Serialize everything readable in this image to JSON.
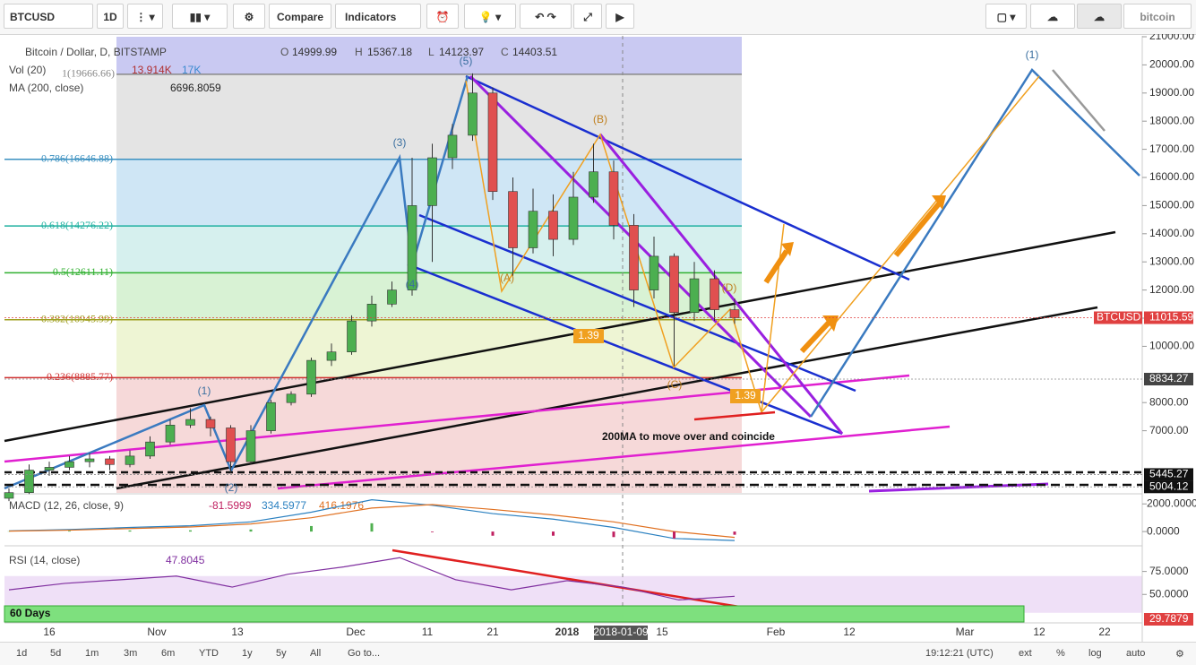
{
  "toolbar": {
    "symbol": "BTCUSD",
    "interval": "1D",
    "compare": "Compare",
    "indicators": "Indicators",
    "account": "bitcoin"
  },
  "legend": {
    "title": "Bitcoin / Dollar, D, BITSTAMP",
    "open_label": "O",
    "open": 14999.99,
    "high_label": "H",
    "high": 15367.18,
    "low_label": "L",
    "low": 14123.97,
    "close_label": "C",
    "close": 14403.51,
    "volume_label": "Vol (20)",
    "volume": "13.914K",
    "volume_ma": "17K",
    "ma_label": "MA (200, close)",
    "ma": 6696.8059
  },
  "chart": {
    "ylim": [
      4790,
      21000
    ],
    "yticks": [
      {
        "value": 21000,
        "label": "21000.00"
      },
      {
        "value": 20000,
        "label": "20000.00"
      },
      {
        "value": 19000,
        "label": "19000.00"
      },
      {
        "value": 18000,
        "label": "18000.00"
      },
      {
        "value": 17000,
        "label": "17000.00"
      },
      {
        "value": 16000,
        "label": "16000.00"
      },
      {
        "value": 15000,
        "label": "15000.00"
      },
      {
        "value": 14000,
        "label": "14000.00"
      },
      {
        "value": 13000,
        "label": "13000.00"
      },
      {
        "value": 12000,
        "label": "12000.00"
      },
      {
        "value": 11000,
        "label": "11000.00"
      },
      {
        "value": 10000,
        "label": "10000.00"
      },
      {
        "value": 8000,
        "label": "8000.00"
      },
      {
        "value": 7000,
        "label": "7000.00"
      }
    ],
    "fib_levels": [
      {
        "value": 19666.66,
        "label": "1(19666.66)"
      },
      {
        "value": 16646.88,
        "label": "0.786(16646.88)"
      },
      {
        "value": 14276.22,
        "label": "0.618(14276.22)"
      },
      {
        "value": 12611.11,
        "label": "0.5(12611.11)"
      },
      {
        "value": 10945.99,
        "label": "0.382(10945.99)"
      },
      {
        "value": 8885.77,
        "label": "0.236(8885.77)"
      }
    ],
    "price_tags": [
      {
        "symbol": "BTCUSD",
        "value": 11015.59
      },
      {
        "value": 8834.27
      },
      {
        "value": 5445.27
      },
      {
        "value": 5004.12
      }
    ],
    "candles": [
      {
        "open": 4600,
        "high": 4950,
        "low": 4500,
        "close": 4800
      },
      {
        "open": 4800,
        "high": 5800,
        "low": 4750,
        "close": 5600
      },
      {
        "open": 5600,
        "high": 5900,
        "low": 5400,
        "close": 5700
      },
      {
        "open": 5700,
        "high": 6100,
        "low": 5600,
        "close": 5900
      },
      {
        "open": 5900,
        "high": 6200,
        "low": 5700,
        "close": 6000
      },
      {
        "open": 6000,
        "high": 6100,
        "low": 5600,
        "close": 5800
      },
      {
        "open": 5800,
        "high": 6300,
        "low": 5700,
        "close": 6100
      },
      {
        "open": 6100,
        "high": 6800,
        "low": 6000,
        "close": 6600
      },
      {
        "open": 6600,
        "high": 7400,
        "low": 6500,
        "close": 7200
      },
      {
        "open": 7200,
        "high": 7800,
        "low": 7100,
        "close": 7400
      },
      {
        "open": 7400,
        "high": 7500,
        "low": 6800,
        "close": 7100
      },
      {
        "open": 7100,
        "high": 7200,
        "low": 5500,
        "close": 5900
      },
      {
        "open": 5900,
        "high": 7200,
        "low": 5800,
        "close": 7000
      },
      {
        "open": 7000,
        "high": 8100,
        "low": 6900,
        "close": 8000
      },
      {
        "open": 8000,
        "high": 8400,
        "low": 7900,
        "close": 8300
      },
      {
        "open": 8300,
        "high": 9600,
        "low": 8200,
        "close": 9500
      },
      {
        "open": 9500,
        "high": 10100,
        "low": 9300,
        "close": 9800
      },
      {
        "open": 9800,
        "high": 11100,
        "low": 9700,
        "close": 10900
      },
      {
        "open": 10900,
        "high": 11800,
        "low": 10700,
        "close": 11500
      },
      {
        "open": 11500,
        "high": 12300,
        "low": 11400,
        "close": 12000
      },
      {
        "open": 12000,
        "high": 16700,
        "low": 11800,
        "close": 15000
      },
      {
        "open": 15000,
        "high": 17200,
        "low": 13000,
        "close": 16700
      },
      {
        "open": 16700,
        "high": 17900,
        "low": 16300,
        "close": 17500
      },
      {
        "open": 17500,
        "high": 19700,
        "low": 17300,
        "close": 19000
      },
      {
        "open": 19000,
        "high": 19200,
        "low": 15200,
        "close": 15500
      },
      {
        "open": 15500,
        "high": 16000,
        "low": 12500,
        "close": 13500
      },
      {
        "open": 13500,
        "high": 15600,
        "low": 13300,
        "close": 14800
      },
      {
        "open": 14800,
        "high": 15400,
        "low": 13200,
        "close": 13800
      },
      {
        "open": 13800,
        "high": 16200,
        "low": 13600,
        "close": 15300
      },
      {
        "open": 15300,
        "high": 17200,
        "low": 15100,
        "close": 16200
      },
      {
        "open": 16200,
        "high": 16600,
        "low": 13800,
        "close": 14300
      },
      {
        "open": 14300,
        "high": 14700,
        "low": 11400,
        "close": 12000
      },
      {
        "open": 12000,
        "high": 13900,
        "low": 11700,
        "close": 13200
      },
      {
        "open": 13200,
        "high": 13300,
        "low": 9300,
        "close": 11200
      },
      {
        "open": 11200,
        "high": 13000,
        "low": 10900,
        "close": 12400
      },
      {
        "open": 12400,
        "high": 12700,
        "low": 10900,
        "close": 11300
      },
      {
        "open": 11300,
        "high": 11700,
        "low": 10800,
        "close": 11016
      }
    ],
    "annotations": {
      "w1": "(1)",
      "w2": "(2)",
      "w3": "(3)",
      "w4": "(4)",
      "w5": "(5)",
      "wa": "(A)",
      "wb": "(B)",
      "wc": "(C)",
      "wd": "(D)",
      "target": "(1)",
      "ratio1": "1.39",
      "ratio2": "1.39",
      "note": "200MA to move over and coincide",
      "days": "60 Days"
    }
  },
  "macd": {
    "label": "MACD (12, 26, close, 9)",
    "values_text": [
      -81.5999,
      334.5977,
      416.1976
    ],
    "ylim": [
      -900,
      2600
    ],
    "yticks": [
      {
        "value": 2000,
        "label": "2000.0000"
      },
      {
        "value": 0,
        "label": "0.0000"
      }
    ],
    "macd": [
      50,
      150,
      300,
      420,
      700,
      1400,
      2300,
      1900,
      1300,
      900,
      300,
      -500,
      -650
    ],
    "signal": [
      30,
      100,
      220,
      330,
      550,
      1000,
      1700,
      1950,
      1600,
      1200,
      700,
      0,
      -420
    ]
  },
  "rsi": {
    "label": "RSI (14, close)",
    "value": 47.8045,
    "ylim": [
      20,
      100
    ],
    "yticks": [
      {
        "value": 75,
        "label": "75.0000"
      },
      {
        "value": 50,
        "label": "50.0000"
      }
    ],
    "last_label": "29.7879",
    "values": [
      55,
      62,
      66,
      70,
      58,
      72,
      80,
      90,
      66,
      55,
      65,
      58,
      44,
      48
    ]
  },
  "time_axis": {
    "labels": [
      "16",
      "Nov",
      "13",
      "Dec",
      "11",
      "21",
      "2018",
      "2018-01-09",
      "15",
      "Feb",
      "12",
      "Mar",
      "12",
      "22"
    ]
  },
  "bottom_bar": {
    "ranges": [
      "1d",
      "5d",
      "1m",
      "3m",
      "6m",
      "YTD",
      "1y",
      "5y",
      "All"
    ],
    "goto": "Go to...",
    "clock": "19:12:21 (UTC)",
    "ext": "ext",
    "percent": "%",
    "log": "log",
    "auto": "auto"
  }
}
